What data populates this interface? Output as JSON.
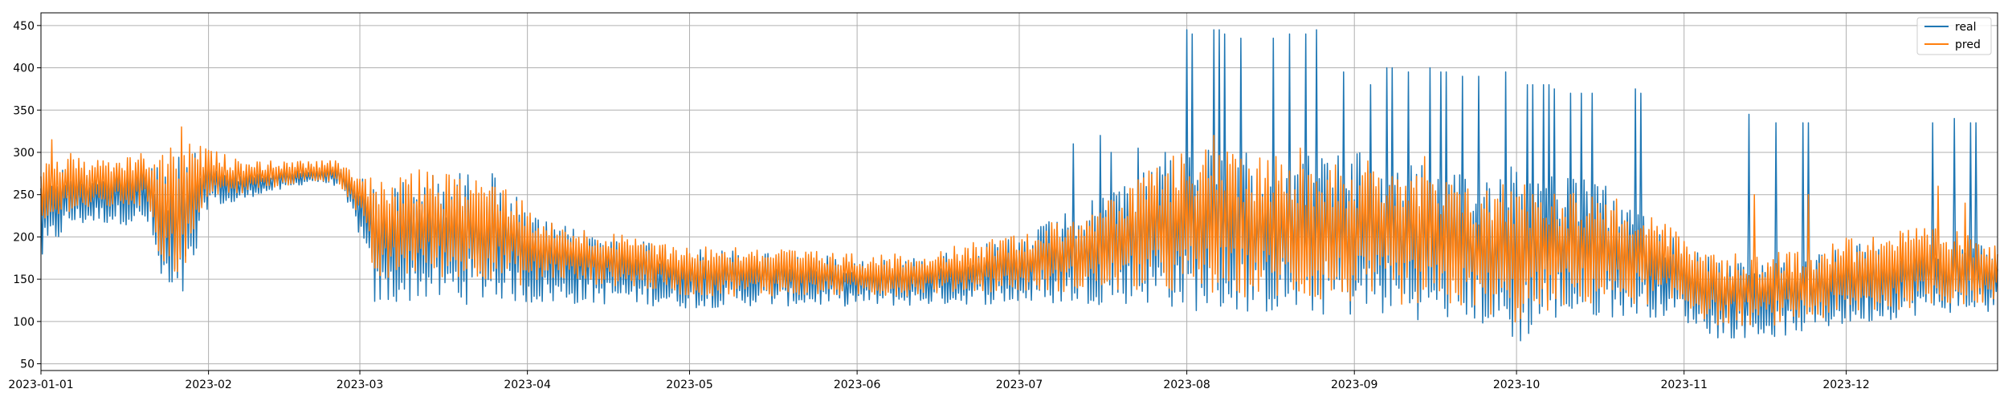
{
  "chart_data": {
    "type": "line",
    "title": "",
    "xlabel": "",
    "ylabel": "",
    "grid": true,
    "legend_position": "top-right",
    "x_start": "2023-01-01",
    "x_end": "2023-12-29",
    "x_unit": "day",
    "xlim": [
      0,
      362
    ],
    "ylim": [
      42,
      465
    ],
    "xticks": [
      {
        "label": "2023-01-01",
        "day": 0
      },
      {
        "label": "2023-02",
        "day": 31
      },
      {
        "label": "2023-03",
        "day": 59
      },
      {
        "label": "2023-04",
        "day": 90
      },
      {
        "label": "2023-05",
        "day": 120
      },
      {
        "label": "2023-06",
        "day": 151
      },
      {
        "label": "2023-07",
        "day": 181
      },
      {
        "label": "2023-08",
        "day": 212
      },
      {
        "label": "2023-09",
        "day": 243
      },
      {
        "label": "2023-10",
        "day": 273
      },
      {
        "label": "2023-11",
        "day": 304
      },
      {
        "label": "2023-12",
        "day": 334
      }
    ],
    "yticks": [
      50,
      100,
      150,
      200,
      250,
      300,
      350,
      400,
      450
    ],
    "series": [
      {
        "name": "real",
        "color": "#1f77b4",
        "description": "hourly measured values (approximate envelope)",
        "x": [
          0,
          5,
          10,
          15,
          20,
          22,
          25,
          28,
          31,
          35,
          40,
          45,
          50,
          55,
          59,
          62,
          66,
          70,
          75,
          80,
          85,
          90,
          95,
          100,
          110,
          120,
          130,
          140,
          151,
          160,
          170,
          181,
          190,
          200,
          205,
          212,
          220,
          230,
          243,
          250,
          258,
          265,
          273,
          280,
          290,
          300,
          304,
          310,
          320,
          334,
          340,
          350,
          362
        ],
        "low": [
          165,
          210,
          215,
          215,
          210,
          140,
          100,
          150,
          240,
          235,
          250,
          255,
          265,
          260,
          200,
          110,
          120,
          125,
          120,
          120,
          125,
          120,
          120,
          120,
          120,
          115,
          118,
          118,
          118,
          118,
          120,
          120,
          120,
          120,
          120,
          112,
          110,
          108,
          105,
          105,
          100,
          100,
          70,
          100,
          105,
          105,
          100,
          80,
          80,
          95,
          100,
          110,
          110
        ],
        "high": [
          285,
          285,
          280,
          285,
          290,
          280,
          300,
          300,
          295,
          280,
          275,
          280,
          280,
          285,
          270,
          265,
          265,
          275,
          275,
          280,
          275,
          230,
          215,
          210,
          200,
          185,
          185,
          180,
          175,
          175,
          185,
          200,
          230,
          260,
          290,
          310,
          300,
          300,
          300,
          300,
          280,
          270,
          300,
          280,
          260,
          210,
          200,
          170,
          170,
          190,
          200,
          200,
          190
        ]
      },
      {
        "name": "pred",
        "color": "#ff7f0e",
        "description": "hourly predicted values (approximate envelope)",
        "x": [
          0,
          5,
          10,
          15,
          20,
          22,
          25,
          28,
          31,
          35,
          40,
          45,
          50,
          55,
          59,
          62,
          66,
          70,
          75,
          80,
          85,
          90,
          95,
          100,
          110,
          120,
          130,
          140,
          151,
          160,
          170,
          181,
          190,
          200,
          205,
          212,
          220,
          230,
          243,
          250,
          258,
          265,
          273,
          280,
          290,
          300,
          304,
          310,
          320,
          334,
          340,
          350,
          362
        ],
        "low": [
          200,
          230,
          230,
          235,
          235,
          170,
          150,
          180,
          250,
          245,
          255,
          260,
          265,
          265,
          220,
          140,
          150,
          155,
          150,
          150,
          150,
          140,
          150,
          145,
          140,
          130,
          130,
          130,
          130,
          130,
          135,
          135,
          135,
          135,
          135,
          130,
          130,
          125,
          120,
          120,
          115,
          115,
          95,
          115,
          120,
          120,
          115,
          95,
          95,
          105,
          110,
          120,
          120
        ],
        "high": [
          300,
          300,
          290,
          295,
          300,
          295,
          320,
          310,
          305,
          295,
          290,
          290,
          290,
          290,
          280,
          270,
          270,
          280,
          275,
          275,
          270,
          240,
          215,
          210,
          200,
          190,
          190,
          185,
          180,
          180,
          190,
          205,
          225,
          250,
          280,
          310,
          300,
          300,
          290,
          290,
          270,
          260,
          270,
          260,
          250,
          220,
          200,
          180,
          180,
          200,
          210,
          210,
          200
        ]
      }
    ],
    "spikes": {
      "real": [
        {
          "day": 191,
          "value": 310
        },
        {
          "day": 196,
          "value": 320
        },
        {
          "day": 198,
          "value": 300
        },
        {
          "day": 203,
          "value": 305
        },
        {
          "day": 208,
          "value": 300
        },
        {
          "day": 212,
          "value": 445
        },
        {
          "day": 213,
          "value": 440
        },
        {
          "day": 217,
          "value": 445
        },
        {
          "day": 218,
          "value": 445
        },
        {
          "day": 219,
          "value": 440
        },
        {
          "day": 222,
          "value": 435
        },
        {
          "day": 228,
          "value": 435
        },
        {
          "day": 231,
          "value": 440
        },
        {
          "day": 234,
          "value": 440
        },
        {
          "day": 236,
          "value": 445
        },
        {
          "day": 241,
          "value": 395
        },
        {
          "day": 246,
          "value": 380
        },
        {
          "day": 249,
          "value": 400
        },
        {
          "day": 250,
          "value": 400
        },
        {
          "day": 253,
          "value": 395
        },
        {
          "day": 257,
          "value": 400
        },
        {
          "day": 259,
          "value": 395
        },
        {
          "day": 260,
          "value": 395
        },
        {
          "day": 263,
          "value": 390
        },
        {
          "day": 266,
          "value": 390
        },
        {
          "day": 271,
          "value": 395
        },
        {
          "day": 275,
          "value": 380
        },
        {
          "day": 276,
          "value": 380
        },
        {
          "day": 278,
          "value": 380
        },
        {
          "day": 279,
          "value": 380
        },
        {
          "day": 280,
          "value": 375
        },
        {
          "day": 283,
          "value": 370
        },
        {
          "day": 285,
          "value": 370
        },
        {
          "day": 287,
          "value": 370
        },
        {
          "day": 295,
          "value": 375
        },
        {
          "day": 296,
          "value": 370
        },
        {
          "day": 316,
          "value": 345
        },
        {
          "day": 321,
          "value": 335
        },
        {
          "day": 326,
          "value": 335
        },
        {
          "day": 327,
          "value": 335
        },
        {
          "day": 350,
          "value": 335
        },
        {
          "day": 354,
          "value": 340
        },
        {
          "day": 357,
          "value": 335
        },
        {
          "day": 358,
          "value": 335
        }
      ],
      "pred": [
        {
          "day": 2,
          "value": 315
        },
        {
          "day": 26,
          "value": 330
        },
        {
          "day": 217,
          "value": 320
        },
        {
          "day": 233,
          "value": 305
        },
        {
          "day": 256,
          "value": 295
        },
        {
          "day": 317,
          "value": 250
        },
        {
          "day": 327,
          "value": 250
        },
        {
          "day": 351,
          "value": 260
        },
        {
          "day": 356,
          "value": 240
        }
      ]
    }
  }
}
